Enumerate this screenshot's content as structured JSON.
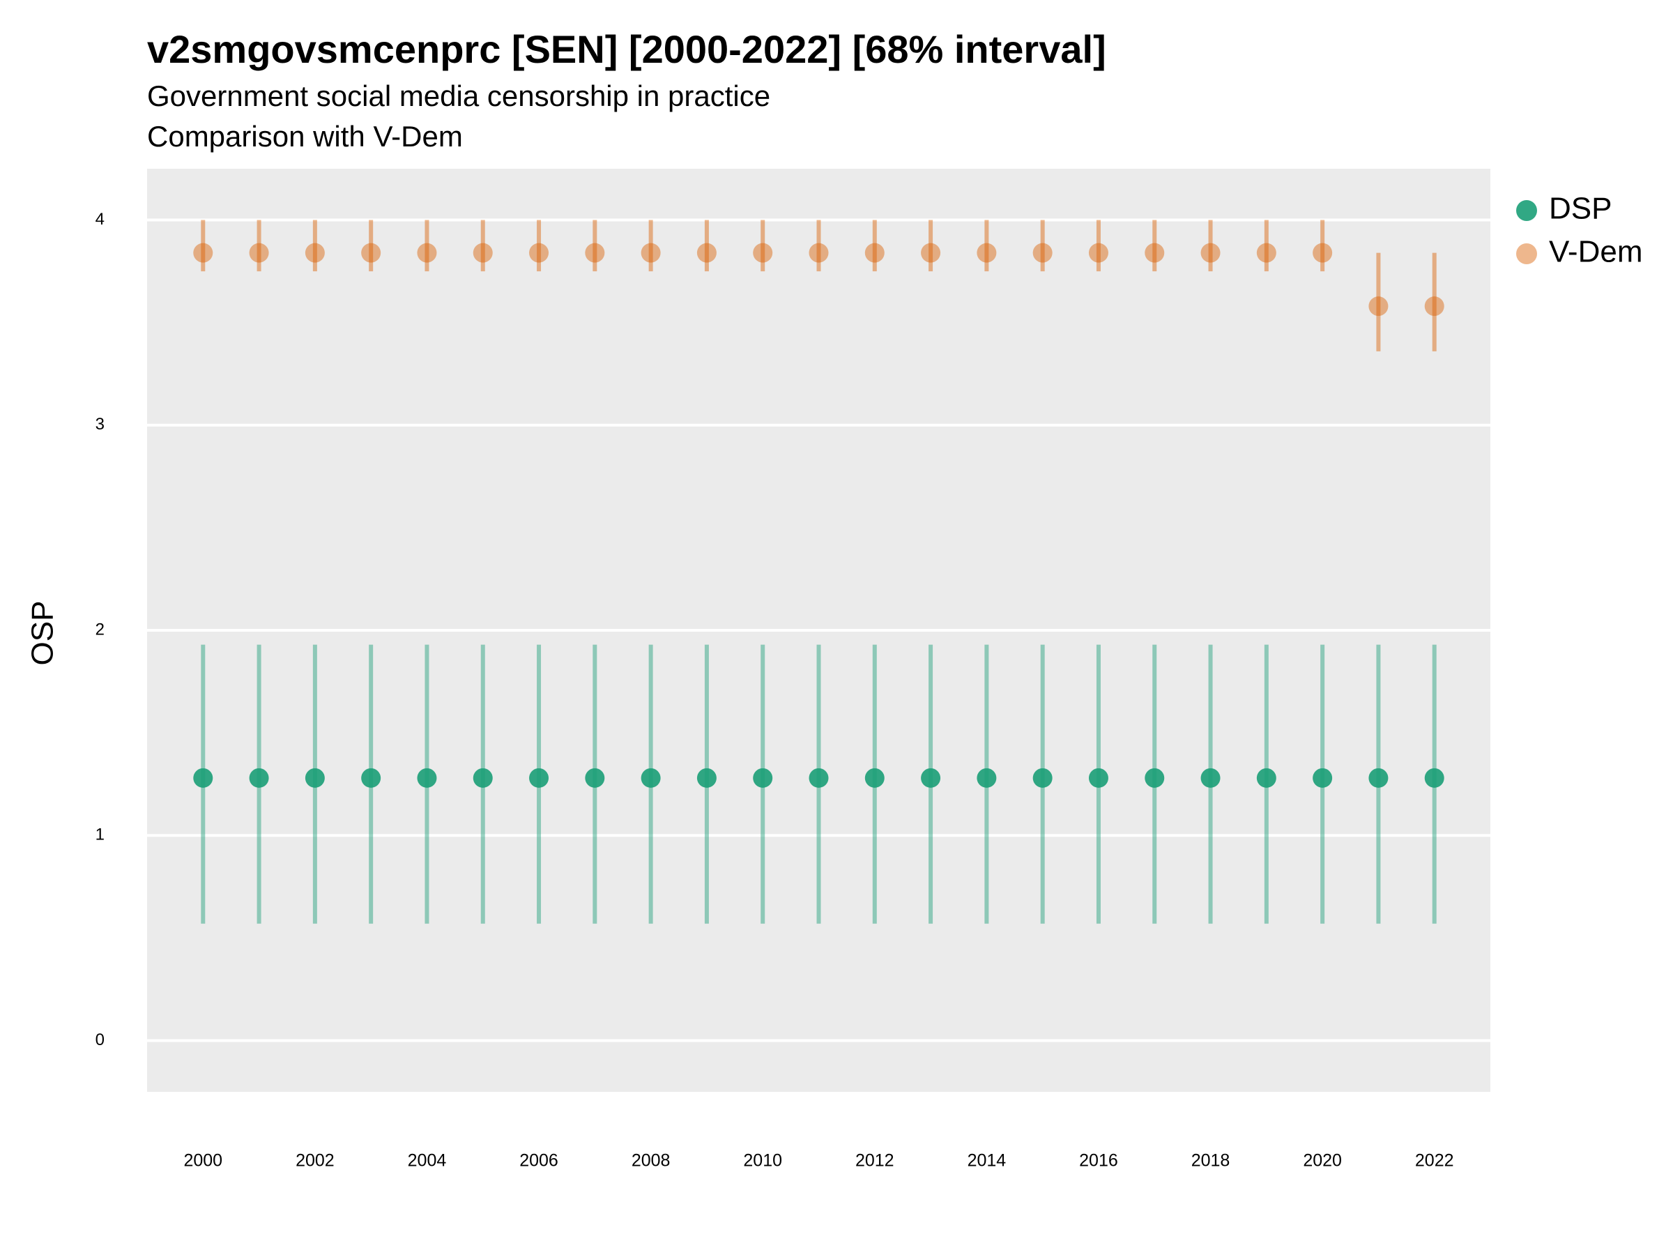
{
  "chart_data": {
    "type": "pointrange",
    "title": "v2smgovsmcenprc [SEN] [2000-2022] [68% interval]",
    "subtitle": [
      "Government social media censorship in practice",
      "Comparison with V-Dem"
    ],
    "y_label": "OSP",
    "x": [
      2000,
      2001,
      2002,
      2003,
      2004,
      2005,
      2006,
      2007,
      2008,
      2009,
      2010,
      2011,
      2012,
      2013,
      2014,
      2015,
      2016,
      2017,
      2018,
      2019,
      2020,
      2021,
      2022
    ],
    "series": [
      {
        "name": "DSP",
        "color": "#1b9e77",
        "alpha": 0.9,
        "values": [
          1.28,
          1.28,
          1.28,
          1.28,
          1.28,
          1.28,
          1.28,
          1.28,
          1.28,
          1.28,
          1.28,
          1.28,
          1.28,
          1.28,
          1.28,
          1.28,
          1.28,
          1.28,
          1.28,
          1.28,
          1.28,
          1.28,
          1.28
        ],
        "lower": [
          0.57,
          0.57,
          0.57,
          0.57,
          0.57,
          0.57,
          0.57,
          0.57,
          0.57,
          0.57,
          0.57,
          0.57,
          0.57,
          0.57,
          0.57,
          0.57,
          0.57,
          0.57,
          0.57,
          0.57,
          0.57,
          0.57,
          0.57
        ],
        "upper": [
          1.93,
          1.93,
          1.93,
          1.93,
          1.93,
          1.93,
          1.93,
          1.93,
          1.93,
          1.93,
          1.93,
          1.93,
          1.93,
          1.93,
          1.93,
          1.93,
          1.93,
          1.93,
          1.93,
          1.93,
          1.93,
          1.93,
          1.93
        ]
      },
      {
        "name": "V-Dem",
        "color": "#d95f02",
        "alpha": 0.45,
        "values": [
          3.84,
          3.84,
          3.84,
          3.84,
          3.84,
          3.84,
          3.84,
          3.84,
          3.84,
          3.84,
          3.84,
          3.84,
          3.84,
          3.84,
          3.84,
          3.84,
          3.84,
          3.84,
          3.84,
          3.84,
          3.84,
          3.58,
          3.58
        ],
        "lower": [
          3.75,
          3.75,
          3.75,
          3.75,
          3.75,
          3.75,
          3.75,
          3.75,
          3.75,
          3.75,
          3.75,
          3.75,
          3.75,
          3.75,
          3.75,
          3.75,
          3.75,
          3.75,
          3.75,
          3.75,
          3.75,
          3.36,
          3.36
        ],
        "upper": [
          4.0,
          4.0,
          4.0,
          4.0,
          4.0,
          4.0,
          4.0,
          4.0,
          4.0,
          4.0,
          4.0,
          4.0,
          4.0,
          4.0,
          4.0,
          4.0,
          4.0,
          4.0,
          4.0,
          4.0,
          4.0,
          3.84,
          3.84
        ]
      }
    ],
    "xlim": [
      1999,
      2023
    ],
    "xticks": [
      2000,
      2002,
      2004,
      2006,
      2008,
      2010,
      2012,
      2014,
      2016,
      2018,
      2020,
      2022
    ],
    "ylim": [
      -0.25,
      4.25
    ],
    "yticks": [
      0,
      1,
      2,
      3,
      4
    ],
    "grid": true,
    "legend": "right"
  }
}
